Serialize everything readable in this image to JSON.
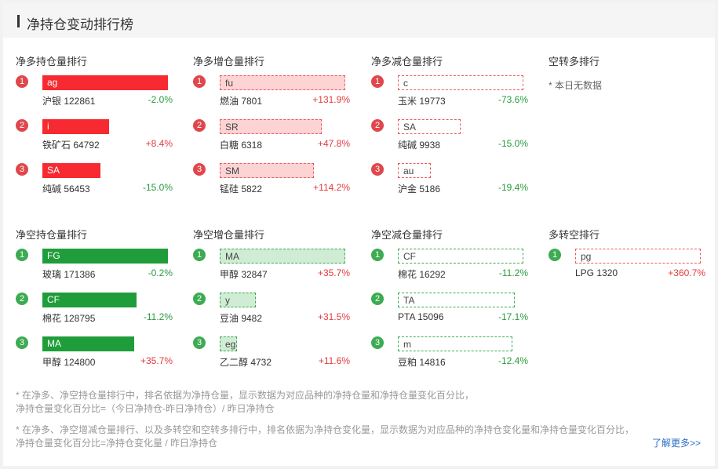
{
  "header": {
    "title": "净持仓变动排行榜"
  },
  "sections": [
    {
      "title": "净多持仓量排行",
      "color": "red",
      "style": "solid",
      "items": [
        {
          "rank": "1",
          "tag": "ag",
          "fill": 1.0,
          "name": "沪银 122861",
          "pct": "-2.0%",
          "dir": "down"
        },
        {
          "rank": "2",
          "tag": "i",
          "fill": 0.53,
          "name": "铁矿石 64792",
          "pct": "+8.4%",
          "dir": "up"
        },
        {
          "rank": "3",
          "tag": "SA",
          "fill": 0.46,
          "name": "纯碱 56453",
          "pct": "-15.0%",
          "dir": "down"
        }
      ]
    },
    {
      "title": "净多增仓量排行",
      "color": "red",
      "style": "light",
      "items": [
        {
          "rank": "1",
          "tag": "fu",
          "fill": 1.0,
          "name": "燃油 7801",
          "pct": "+131.9%",
          "dir": "up"
        },
        {
          "rank": "2",
          "tag": "SR",
          "fill": 0.81,
          "name": "白糖 6318",
          "pct": "+47.8%",
          "dir": "up"
        },
        {
          "rank": "3",
          "tag": "SM",
          "fill": 0.75,
          "name": "锰硅 5822",
          "pct": "+114.2%",
          "dir": "up"
        }
      ]
    },
    {
      "title": "净多减仓量排行",
      "color": "red",
      "style": "outline",
      "items": [
        {
          "rank": "1",
          "tag": "c",
          "fill": 1.0,
          "name": "玉米 19773",
          "pct": "-73.6%",
          "dir": "down"
        },
        {
          "rank": "2",
          "tag": "SA",
          "fill": 0.5,
          "name": "纯碱 9938",
          "pct": "-15.0%",
          "dir": "down"
        },
        {
          "rank": "3",
          "tag": "au",
          "fill": 0.26,
          "name": "沪金 5186",
          "pct": "-19.4%",
          "dir": "down"
        }
      ]
    },
    {
      "title": "空转多排行",
      "nodata": "* 本日无数据",
      "items": []
    },
    {
      "title": "净空持仓量排行",
      "color": "green",
      "style": "solid",
      "items": [
        {
          "rank": "1",
          "tag": "FG",
          "fill": 1.0,
          "name": "玻璃 171386",
          "pct": "-0.2%",
          "dir": "down"
        },
        {
          "rank": "2",
          "tag": "CF",
          "fill": 0.75,
          "name": "棉花 128795",
          "pct": "-11.2%",
          "dir": "down"
        },
        {
          "rank": "3",
          "tag": "MA",
          "fill": 0.73,
          "name": "甲醇 124800",
          "pct": "+35.7%",
          "dir": "up"
        }
      ]
    },
    {
      "title": "净空增仓量排行",
      "color": "green",
      "style": "light",
      "items": [
        {
          "rank": "1",
          "tag": "MA",
          "fill": 1.0,
          "name": "甲醇 32847",
          "pct": "+35.7%",
          "dir": "up"
        },
        {
          "rank": "2",
          "tag": "y",
          "fill": 0.29,
          "name": "豆油 9482",
          "pct": "+31.5%",
          "dir": "up"
        },
        {
          "rank": "3",
          "tag": "eg",
          "fill": 0.14,
          "name": "乙二醇 4732",
          "pct": "+11.6%",
          "dir": "up"
        }
      ]
    },
    {
      "title": "净空减仓量排行",
      "color": "green",
      "style": "outline",
      "items": [
        {
          "rank": "1",
          "tag": "CF",
          "fill": 1.0,
          "name": "棉花 16292",
          "pct": "-11.2%",
          "dir": "down"
        },
        {
          "rank": "2",
          "tag": "TA",
          "fill": 0.93,
          "name": "PTA 15096",
          "pct": "-17.1%",
          "dir": "down"
        },
        {
          "rank": "3",
          "tag": "m",
          "fill": 0.91,
          "name": "豆粕 14816",
          "pct": "-12.4%",
          "dir": "down"
        }
      ]
    },
    {
      "title": "多转空排行",
      "color": "red",
      "style": "outline",
      "rankColor": "green",
      "items": [
        {
          "rank": "1",
          "tag": "pg",
          "fill": 1.0,
          "name": "LPG 1320",
          "pct": "+360.7%",
          "dir": "up"
        }
      ]
    }
  ],
  "notes": {
    "note1_line1": "* 在净多、净空持仓量排行中，排名依据为净持仓量，显示数据为对应品种的净持仓量和净持仓量变化百分比，",
    "note1_line2": "净持仓量变化百分比=（今日净持仓-昨日净持仓）/ 昨日净持仓",
    "note2_line1": "* 在净多、净空增减仓量排行、以及多转空和空转多排行中，排名依据为净持仓变化量，显示数据为对应品种的净持仓变化量和净持仓量变化百分比，",
    "note2_line2": "净持仓量变化百分比=净持仓变化量 / 昨日净持仓"
  },
  "more_link": "了解更多>>"
}
